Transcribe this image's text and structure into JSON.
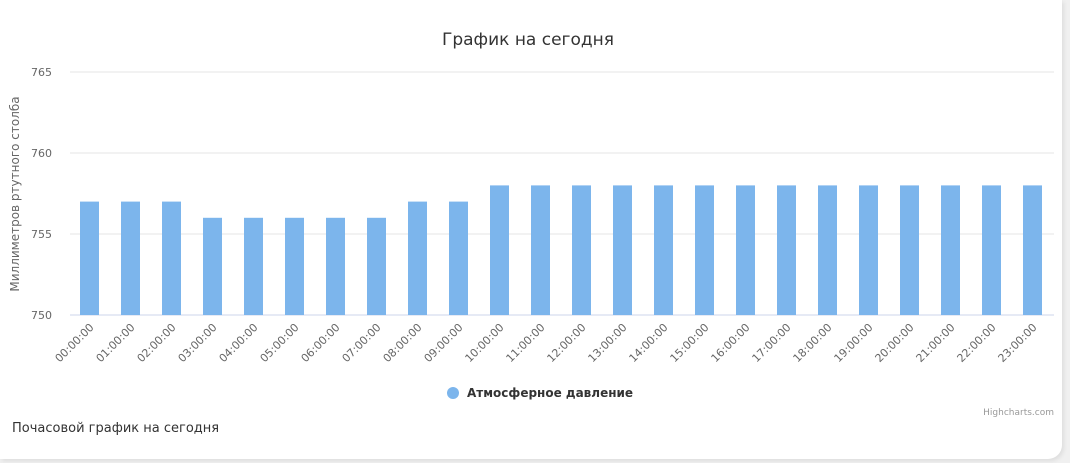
{
  "chart_data": {
    "type": "bar",
    "title": "График на сегодня",
    "ylabel": "Миллиметров ртутного столба",
    "ylim": [
      750,
      765
    ],
    "yticks": [
      750,
      755,
      760,
      765
    ],
    "grid": true,
    "legend_position": "bottom-center",
    "categories": [
      "00:00:00",
      "01:00:00",
      "02:00:00",
      "03:00:00",
      "04:00:00",
      "05:00:00",
      "06:00:00",
      "07:00:00",
      "08:00:00",
      "09:00:00",
      "10:00:00",
      "11:00:00",
      "12:00:00",
      "13:00:00",
      "14:00:00",
      "15:00:00",
      "16:00:00",
      "17:00:00",
      "18:00:00",
      "19:00:00",
      "20:00:00",
      "21:00:00",
      "22:00:00",
      "23:00:00"
    ],
    "series": [
      {
        "name": "Атмосферное давление",
        "color": "#7cb5ec",
        "values": [
          757,
          757,
          757,
          756,
          756,
          756,
          756,
          756,
          757,
          757,
          758,
          758,
          758,
          758,
          758,
          758,
          758,
          758,
          758,
          758,
          758,
          758,
          758,
          758
        ]
      }
    ]
  },
  "credits": "Highcharts.com",
  "caption": "Почасовой график на сегодня"
}
